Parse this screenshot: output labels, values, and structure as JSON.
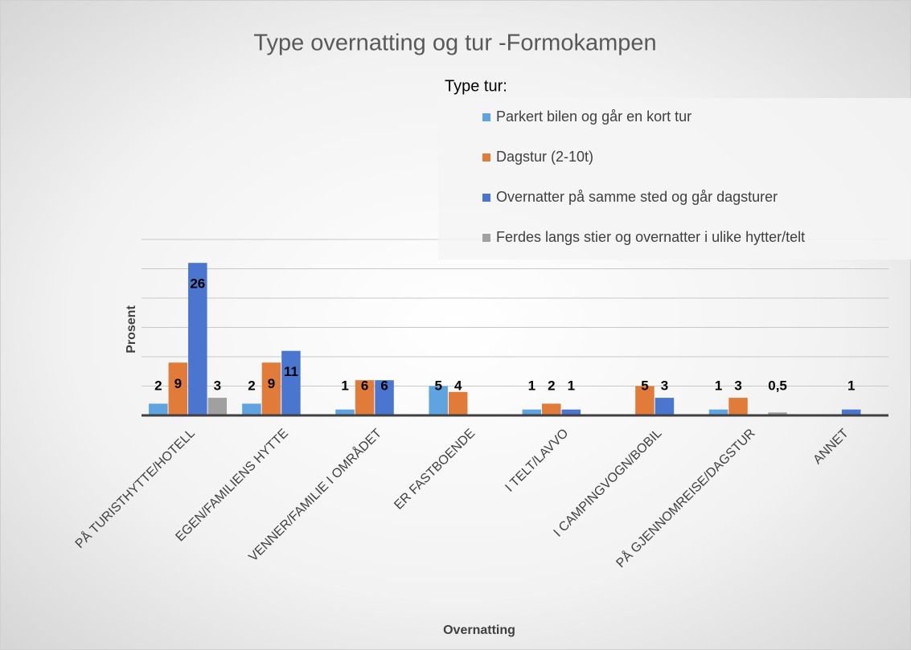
{
  "chart_data": {
    "type": "bar",
    "title": "Type overnatting og tur -Formokampen",
    "legend_title": "Type tur:",
    "x_label": "Overnatting",
    "y_label": "Prosent",
    "categories": [
      "PÅ TURISTHYTTE/HOTELL",
      "EGEN/FAMILIENS HYTTE",
      "VENNER/FAMILIE I OMRÅDET",
      "ER FASTBOENDE",
      "I TELT/LAVVO",
      "I CAMPINGVOGN/BOBIL",
      "PÅ GJENNOMREISE/DAGSTUR",
      "ANNET"
    ],
    "series": [
      {
        "name": "Parkert bilen og går en kort tur",
        "color": "#5fa3e0",
        "values": [
          2,
          2,
          1,
          5,
          1,
          null,
          1,
          null
        ]
      },
      {
        "name": "Dagstur (2-10t)",
        "color": "#e07b39",
        "values": [
          9,
          9,
          6,
          4,
          2,
          5,
          3,
          null
        ]
      },
      {
        "name": "Overnatter på samme sted og går dagsturer",
        "color": "#4a76d0",
        "values": [
          26,
          11,
          6,
          null,
          1,
          3,
          null,
          1
        ]
      },
      {
        "name": "Ferdes langs stier og overnatter i ulike hytter/telt",
        "color": "#a0a0a0",
        "values": [
          3,
          null,
          null,
          null,
          null,
          null,
          0.5,
          null
        ],
        "value_labels": [
          "3",
          null,
          null,
          null,
          null,
          null,
          "0,5",
          null
        ]
      }
    ],
    "ylim": [
      0,
      30
    ],
    "yticks": [
      0,
      5,
      10,
      15,
      20,
      25,
      30
    ],
    "grid": true,
    "legend": "upper right"
  }
}
